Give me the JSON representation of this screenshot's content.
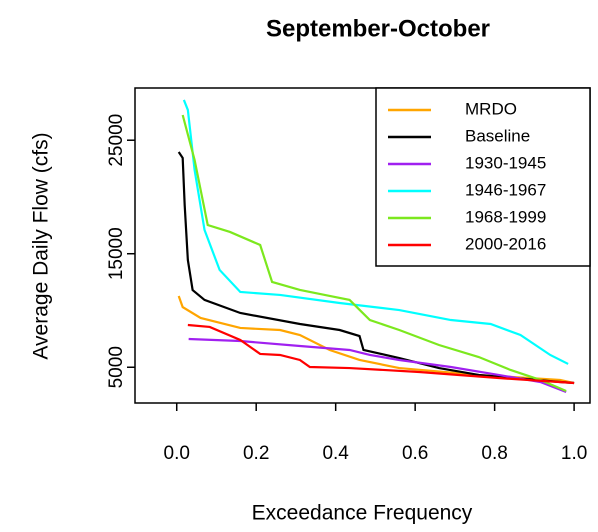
{
  "chart_data": {
    "type": "line",
    "title": "September-October",
    "x_label": "Exceedance Frequency",
    "y_label": "Average Daily Flow (cfs)",
    "xlim": [
      -0.105,
      1.04
    ],
    "ylim": [
      1850,
      29600
    ],
    "xticks": [
      {
        "value": 0,
        "label": "0.0"
      },
      0.2,
      0.4,
      0.6,
      0.8,
      {
        "value": 1,
        "label": "1.0"
      }
    ],
    "yticks": [
      5000,
      15000,
      25000
    ],
    "legend": "top-right",
    "series": [
      {
        "name": "MRDO",
        "color": "#FFA500",
        "x": [
          0.005,
          0.015,
          0.06,
          0.16,
          0.26,
          0.31,
          0.385,
          0.46,
          0.56,
          0.76,
          0.965,
          1.0
        ],
        "values": [
          11280,
          10300,
          9340,
          8460,
          8280,
          7840,
          6520,
          5640,
          4930,
          4320,
          3880,
          3610
        ]
      },
      {
        "name": "Baseline",
        "color": "#000000",
        "x": [
          0.005,
          0.015,
          0.02,
          0.028,
          0.04,
          0.07,
          0.16,
          0.31,
          0.41,
          0.46,
          0.47,
          0.56,
          0.66,
          0.76,
          0.965,
          1.0
        ],
        "values": [
          23960,
          23440,
          19300,
          14450,
          11800,
          10930,
          9780,
          8810,
          8280,
          7750,
          6520,
          5810,
          4930,
          4320,
          3700,
          3610
        ]
      },
      {
        "name": "1930-1945",
        "color": "#A020F0",
        "x": [
          0.03,
          0.16,
          0.31,
          0.435,
          0.486,
          0.56,
          0.69,
          0.81,
          0.915,
          0.98
        ],
        "values": [
          7490,
          7310,
          6870,
          6520,
          6080,
          5640,
          5020,
          4320,
          3700,
          2820
        ]
      },
      {
        "name": "1946-1967",
        "color": "#00FFFF",
        "x": [
          0.018,
          0.028,
          0.045,
          0.07,
          0.108,
          0.16,
          0.26,
          0.41,
          0.56,
          0.69,
          0.79,
          0.865,
          0.94,
          0.985
        ],
        "values": [
          28550,
          27670,
          22380,
          17090,
          13570,
          11630,
          11370,
          10660,
          10040,
          9160,
          8810,
          7840,
          6080,
          5290
        ]
      },
      {
        "name": "1968-1999",
        "color": "#7CE81E",
        "x": [
          0.015,
          0.045,
          0.078,
          0.134,
          0.21,
          0.24,
          0.31,
          0.385,
          0.435,
          0.486,
          0.56,
          0.66,
          0.76,
          0.84,
          0.915,
          0.98
        ],
        "values": [
          27220,
          23260,
          17530,
          16920,
          15770,
          12510,
          11810,
          11280,
          10930,
          9160,
          8280,
          6960,
          5900,
          4760,
          3880,
          2910
        ]
      },
      {
        "name": "2000-2016",
        "color": "#FF0000",
        "x": [
          0.028,
          0.083,
          0.16,
          0.21,
          0.26,
          0.31,
          0.335,
          0.435,
          0.61,
          0.81,
          1.0
        ],
        "values": [
          8720,
          8550,
          7400,
          6170,
          6080,
          5640,
          5020,
          4930,
          4580,
          4050,
          3610
        ]
      }
    ]
  }
}
